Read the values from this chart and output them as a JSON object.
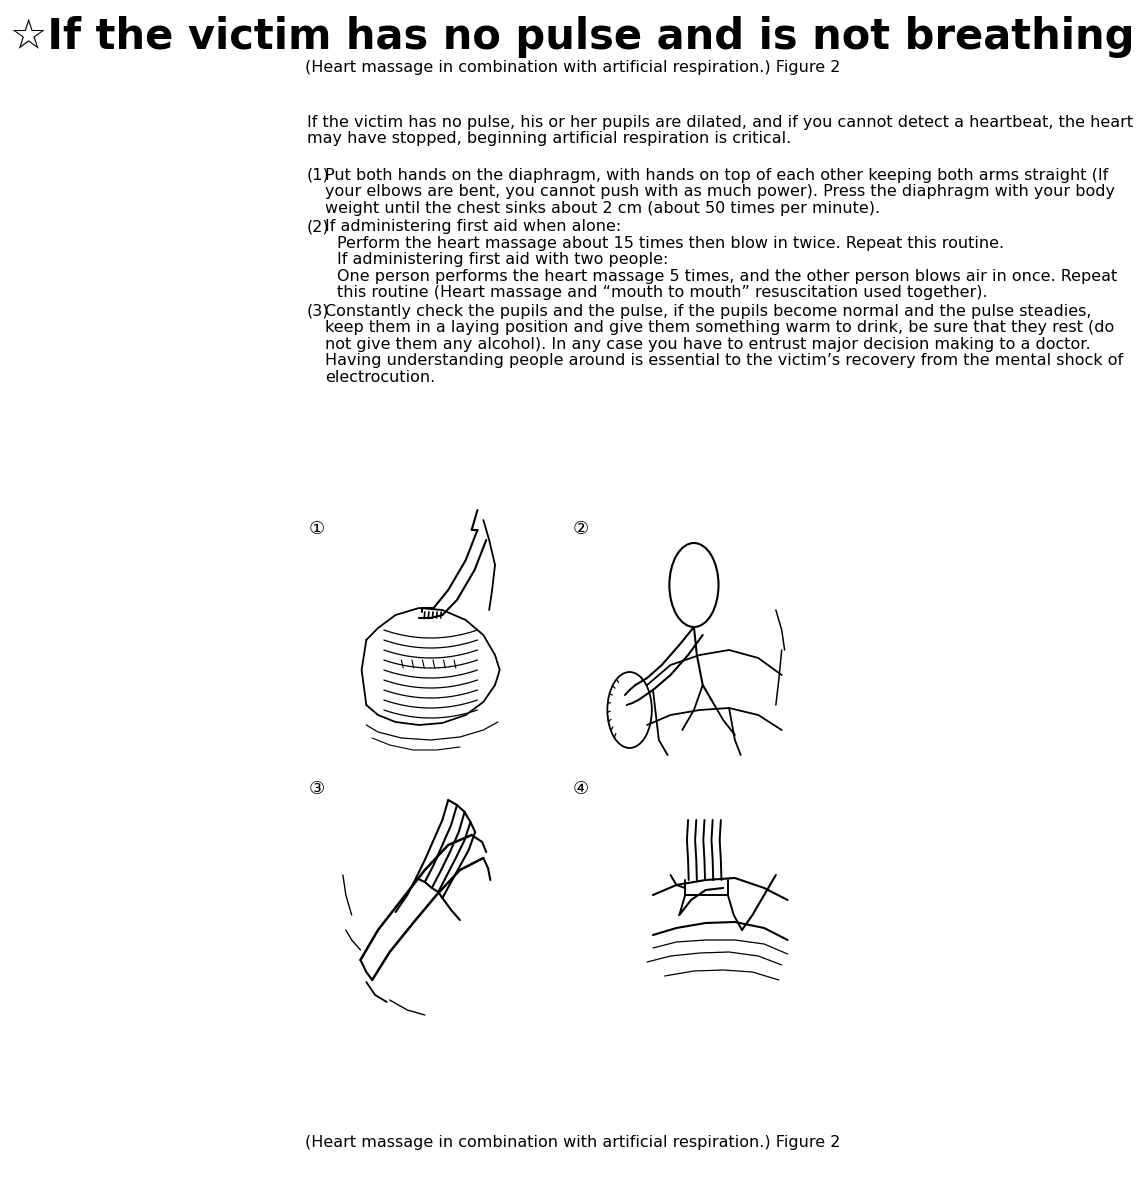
{
  "title": "☆If the victim has no pulse and is not breathing",
  "subtitle": "(Heart massage in combination with artificial respiration.) Figure 2",
  "intro1": "If the victim has no pulse, his or her pupils are dilated, and if you cannot detect a heartbeat, the heart",
  "intro2": "may have stopped, beginning artificial respiration is critical.",
  "p1_label": "(1)",
  "p1_l1": "Put both hands on the diaphragm, with hands on top of each other keeping both arms straight (If",
  "p1_l2": "your elbows are bent, you cannot push with as much power). Press the diaphragm with your body",
  "p1_l3": "weight until the chest sinks about 2 cm (about 50 times per minute).",
  "p2_label": "(2)",
  "p2_l1": "If administering first aid when alone:",
  "p2_l2": "Perform the heart massage about 15 times then blow in twice. Repeat this routine.",
  "p2_l3": "If administering first aid with two people:",
  "p2_l4": "One person performs the heart massage 5 times, and the other person blows air in once. Repeat",
  "p2_l5": "this routine (Heart massage and “mouth to mouth” resuscitation used together).",
  "p3_label": "(3)",
  "p3_l1": "Constantly check the pupils and the pulse, if the pupils become normal and the pulse steadies,",
  "p3_l2": "keep them in a laying position and give them something warm to drink, be sure that they rest (do",
  "p3_l3": "not give them any alcohol). In any case you have to entrust major decision making to a doctor.",
  "p3_l4": "Having understanding people around is essential to the victim’s recovery from the mental shock of",
  "p3_l5": "electrocution.",
  "lbl1": "①",
  "lbl2": "②",
  "lbl3": "③",
  "lbl4": "④",
  "footer": "(Heart massage in combination with artificial respiration.) Figure 2",
  "title_fs": 30,
  "sub_fs": 11.5,
  "body_fs": 11.5,
  "lbl_fs": 13
}
